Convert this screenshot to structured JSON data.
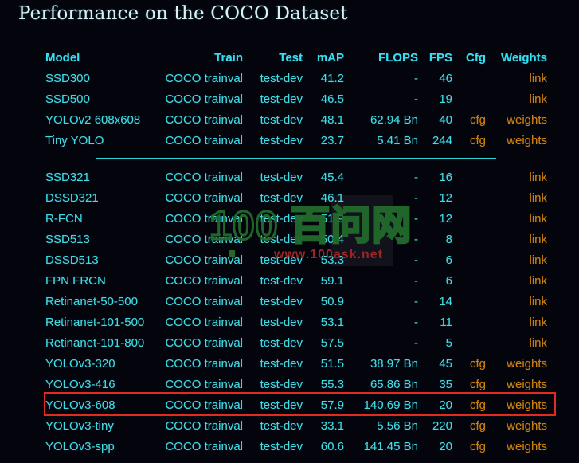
{
  "title": "Performance on the COCO Dataset",
  "table": {
    "headers": [
      "Model",
      "Train",
      "Test",
      "mAP",
      "FLOPS",
      "FPS",
      "Cfg",
      "Weights"
    ],
    "columns": [
      "model",
      "train",
      "test",
      "map",
      "flops",
      "fps",
      "cfg",
      "weights"
    ],
    "sections": [
      {
        "rows": [
          {
            "model": "SSD300",
            "train": "COCO trainval",
            "test": "test-dev",
            "map": "41.2",
            "flops": "-",
            "fps": "46",
            "cfg": "",
            "weights": "link"
          },
          {
            "model": "SSD500",
            "train": "COCO trainval",
            "test": "test-dev",
            "map": "46.5",
            "flops": "-",
            "fps": "19",
            "cfg": "",
            "weights": "link"
          },
          {
            "model": "YOLOv2 608x608",
            "train": "COCO trainval",
            "test": "test-dev",
            "map": "48.1",
            "flops": "62.94 Bn",
            "fps": "40",
            "cfg": "cfg",
            "weights": "weights"
          },
          {
            "model": "Tiny YOLO",
            "train": "COCO trainval",
            "test": "test-dev",
            "map": "23.7",
            "flops": "5.41 Bn",
            "fps": "244",
            "cfg": "cfg",
            "weights": "weights"
          }
        ]
      },
      {
        "rows": [
          {
            "model": "SSD321",
            "train": "COCO trainval",
            "test": "test-dev",
            "map": "45.4",
            "flops": "-",
            "fps": "16",
            "cfg": "",
            "weights": "link"
          },
          {
            "model": "DSSD321",
            "train": "COCO trainval",
            "test": "test-dev",
            "map": "46.1",
            "flops": "-",
            "fps": "12",
            "cfg": "",
            "weights": "link"
          },
          {
            "model": "R-FCN",
            "train": "COCO trainval",
            "test": "test-dev",
            "map": "51.9",
            "flops": "-",
            "fps": "12",
            "cfg": "",
            "weights": "link"
          },
          {
            "model": "SSD513",
            "train": "COCO trainval",
            "test": "test-dev",
            "map": "50.4",
            "flops": "-",
            "fps": "8",
            "cfg": "",
            "weights": "link"
          },
          {
            "model": "DSSD513",
            "train": "COCO trainval",
            "test": "test-dev",
            "map": "53.3",
            "flops": "-",
            "fps": "6",
            "cfg": "",
            "weights": "link"
          },
          {
            "model": "FPN FRCN",
            "train": "COCO trainval",
            "test": "test-dev",
            "map": "59.1",
            "flops": "-",
            "fps": "6",
            "cfg": "",
            "weights": "link"
          },
          {
            "model": "Retinanet-50-500",
            "train": "COCO trainval",
            "test": "test-dev",
            "map": "50.9",
            "flops": "-",
            "fps": "14",
            "cfg": "",
            "weights": "link"
          },
          {
            "model": "Retinanet-101-500",
            "train": "COCO trainval",
            "test": "test-dev",
            "map": "53.1",
            "flops": "-",
            "fps": "11",
            "cfg": "",
            "weights": "link"
          },
          {
            "model": "Retinanet-101-800",
            "train": "COCO trainval",
            "test": "test-dev",
            "map": "57.5",
            "flops": "-",
            "fps": "5",
            "cfg": "",
            "weights": "link"
          },
          {
            "model": "YOLOv3-320",
            "train": "COCO trainval",
            "test": "test-dev",
            "map": "51.5",
            "flops": "38.97 Bn",
            "fps": "45",
            "cfg": "cfg",
            "weights": "weights"
          },
          {
            "model": "YOLOv3-416",
            "train": "COCO trainval",
            "test": "test-dev",
            "map": "55.3",
            "flops": "65.86 Bn",
            "fps": "35",
            "cfg": "cfg",
            "weights": "weights"
          },
          {
            "model": "YOLOv3-608",
            "train": "COCO trainval",
            "test": "test-dev",
            "map": "57.9",
            "flops": "140.69 Bn",
            "fps": "20",
            "cfg": "cfg",
            "weights": "weights"
          },
          {
            "model": "YOLOv3-tiny",
            "train": "COCO trainval",
            "test": "test-dev",
            "map": "33.1",
            "flops": "5.56 Bn",
            "fps": "220",
            "cfg": "cfg",
            "weights": "weights"
          },
          {
            "model": "YOLOv3-spp",
            "train": "COCO trainval",
            "test": "test-dev",
            "map": "60.6",
            "flops": "141.45 Bn",
            "fps": "20",
            "cfg": "cfg",
            "weights": "weights"
          }
        ]
      }
    ]
  },
  "highlight": {
    "highlighted_model": "YOLOv3-608",
    "border_color": "#e12b22"
  },
  "watermark": {
    "logo_text": "100 百问网",
    "url": "www.100ask.net"
  },
  "colors": {
    "background": "#04040d",
    "table_text_cyan": "#41dbe3",
    "header_cyan": "#35dff0",
    "link_orange": "#cc830e",
    "title_color": "#d9f1f1",
    "divider_cyan": "#2bd8d8",
    "highlight_red": "#e12b22",
    "watermark_green": "#226a2b",
    "watermark_url_red": "#9c2626"
  }
}
